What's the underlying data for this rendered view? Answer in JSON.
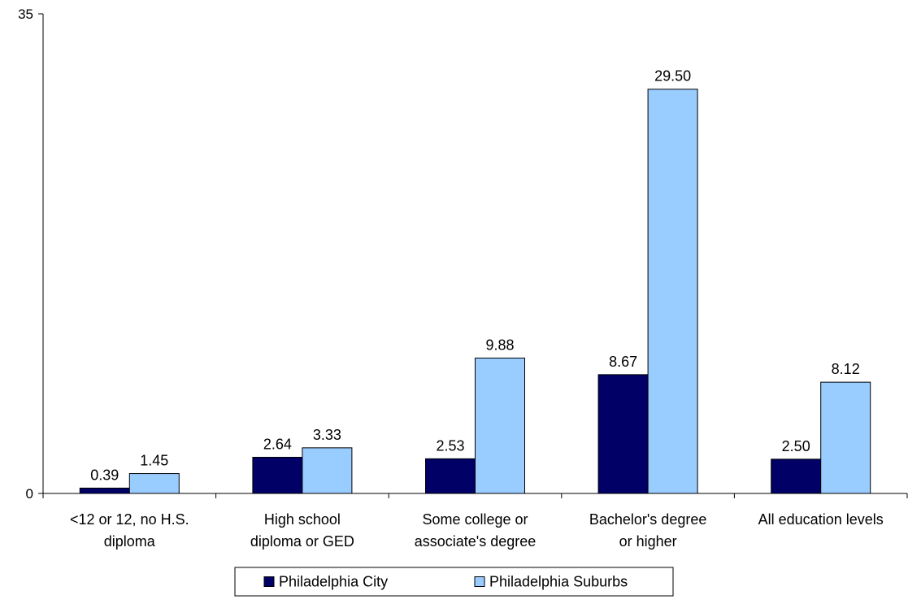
{
  "chart_data": {
    "type": "bar",
    "categories": [
      [
        "<12 or 12, no H.S.",
        "diploma"
      ],
      [
        "High school",
        "diploma or GED"
      ],
      [
        "Some college or",
        "associate's degree"
      ],
      [
        "Bachelor's degree",
        "or higher"
      ],
      [
        "All education levels"
      ]
    ],
    "series": [
      {
        "name": "Philadelphia City",
        "color": "#000066",
        "values": [
          0.39,
          2.64,
          2.53,
          8.67,
          2.5
        ],
        "labels": [
          "0.39",
          "2.64",
          "2.53",
          "8.67",
          "2.50"
        ]
      },
      {
        "name": "Philadelphia Suburbs",
        "color": "#99CCFF",
        "values": [
          1.45,
          3.33,
          9.88,
          29.5,
          8.12
        ],
        "labels": [
          "1.45",
          "3.33",
          "9.88",
          "29.50",
          "8.12"
        ]
      }
    ],
    "ylim": [
      0,
      35
    ],
    "yticks": [
      "0",
      "35"
    ],
    "grid": false,
    "legend": "bottom-center"
  }
}
